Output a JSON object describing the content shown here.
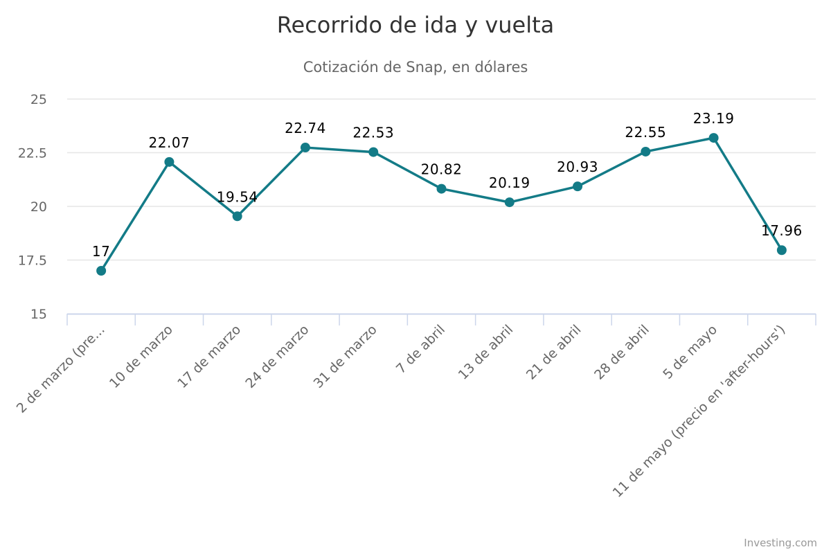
{
  "chart_data": {
    "type": "line",
    "title": "Recorrido de ida y vuelta",
    "subtitle": "Cotización de Snap, en dólares",
    "categories": [
      "2 de marzo (pre...",
      "10 de marzo",
      "17 de marzo",
      "24 de marzo",
      "31 de marzo",
      "7 de abril",
      "13 de abril",
      "21 de abril",
      "28 de abril",
      "5 de mayo",
      "11 de mayo (precio en 'after-hours')"
    ],
    "values": [
      17,
      22.07,
      19.54,
      22.74,
      22.53,
      20.82,
      20.19,
      20.93,
      22.55,
      23.19,
      17.96
    ],
    "data_labels": [
      "17",
      "22.07",
      "19.54",
      "22.74",
      "22.53",
      "20.82",
      "20.19",
      "20.93",
      "22.55",
      "23.19",
      "17.96"
    ],
    "ylim": [
      15,
      25
    ],
    "yticks": [
      15,
      17.5,
      20,
      22.5,
      25
    ],
    "ytick_labels": [
      "15",
      "17.5",
      "20",
      "22.5",
      "25"
    ],
    "xlabel": "",
    "ylabel": "",
    "grid": true,
    "legend": "none",
    "line_color": "#137b87",
    "gridline_color": "#e6e6e6",
    "axis_color": "#ccd6eb",
    "credit": "Investing.com"
  }
}
